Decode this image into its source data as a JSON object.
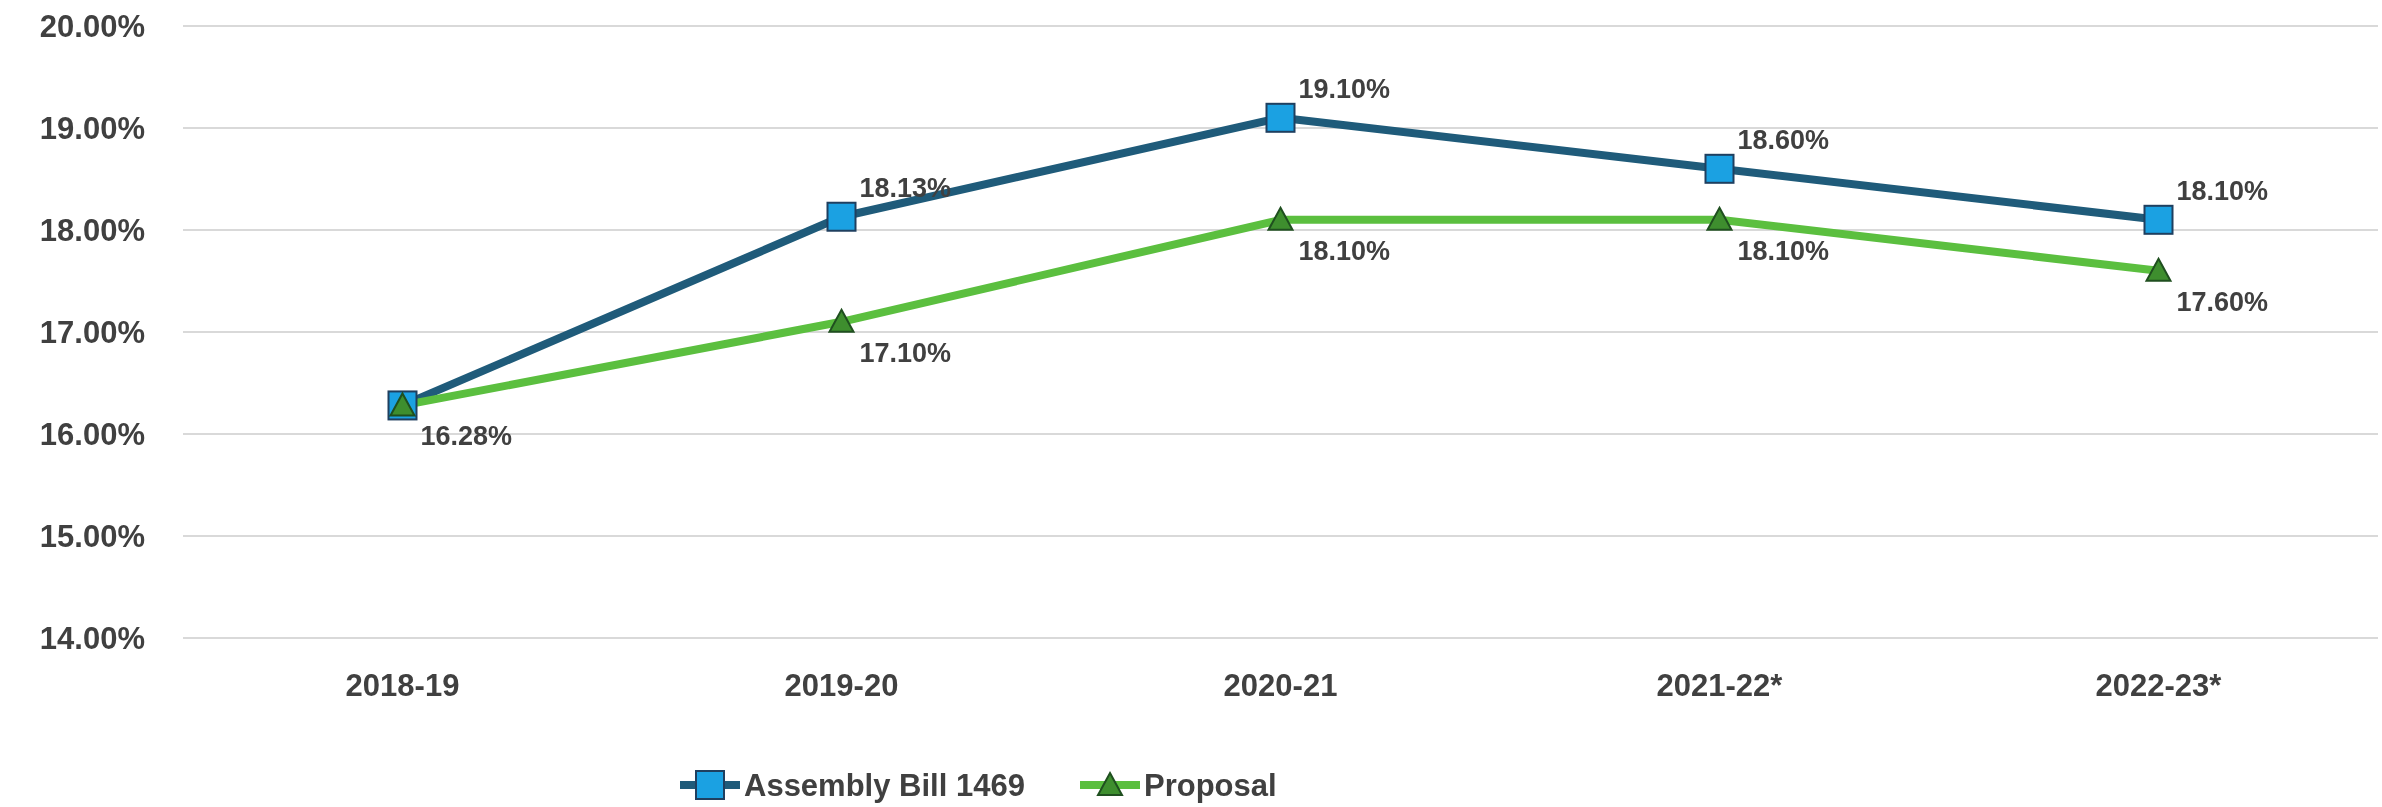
{
  "chart_data": {
    "type": "line",
    "categories": [
      "2018-19",
      "2019-20",
      "2020-21",
      "2021-22*",
      "2022-23*"
    ],
    "series": [
      {
        "name": "Assembly Bill 1469",
        "color": "#1f5b7a",
        "marker": "square",
        "values": [
          16.28,
          18.13,
          19.1,
          18.6,
          18.1
        ],
        "value_labels": [
          null,
          "18.13%",
          "19.10%",
          "18.60%",
          "18.10%"
        ]
      },
      {
        "name": "Proposal",
        "color": "#5bbf3f",
        "marker": "triangle",
        "values": [
          16.28,
          17.1,
          18.1,
          18.1,
          17.6
        ],
        "value_labels": [
          "16.28%",
          "17.10%",
          "18.10%",
          "18.10%",
          "17.60%"
        ]
      }
    ],
    "ylim": [
      14,
      20
    ],
    "yticks": [
      {
        "value": 14,
        "label": "14.00%"
      },
      {
        "value": 15,
        "label": "15.00%"
      },
      {
        "value": 16,
        "label": "16.00%"
      },
      {
        "value": 17,
        "label": "17.00%"
      },
      {
        "value": 18,
        "label": "18.00%"
      },
      {
        "value": 19,
        "label": "19.00%"
      },
      {
        "value": 20,
        "label": "20.00%"
      }
    ],
    "grid": "y",
    "legend": "bottom",
    "line_style": "solid"
  }
}
